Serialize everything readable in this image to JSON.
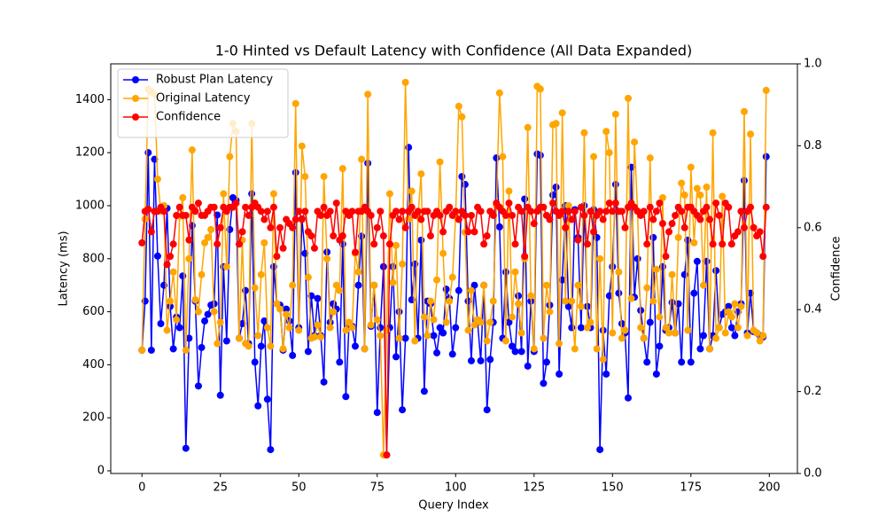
{
  "chart_data": {
    "type": "line",
    "title": "1-0 Hinted vs Default Latency with Confidence (All Data Expanded)",
    "xlabel": "Query Index",
    "ylabel": "Latency (ms)",
    "y2label": "Confidence",
    "x": [
      0,
      1,
      2,
      3,
      4,
      5,
      6,
      7,
      8,
      9,
      10,
      11,
      12,
      13,
      14,
      15,
      16,
      17,
      18,
      19,
      20,
      21,
      22,
      23,
      24,
      25,
      26,
      27,
      28,
      29,
      30,
      31,
      32,
      33,
      34,
      35,
      36,
      37,
      38,
      39,
      40,
      41,
      42,
      43,
      44,
      45,
      46,
      47,
      48,
      49,
      50,
      51,
      52,
      53,
      54,
      55,
      56,
      57,
      58,
      59,
      60,
      61,
      62,
      63,
      64,
      65,
      66,
      67,
      68,
      69,
      70,
      71,
      72,
      73,
      74,
      75,
      76,
      77,
      78,
      79,
      80,
      81,
      82,
      83,
      84,
      85,
      86,
      87,
      88,
      89,
      90,
      91,
      92,
      93,
      94,
      95,
      96,
      97,
      98,
      99,
      100,
      101,
      102,
      103,
      104,
      105,
      106,
      107,
      108,
      109,
      110,
      111,
      112,
      113,
      114,
      115,
      116,
      117,
      118,
      119,
      120,
      121,
      122,
      123,
      124,
      125,
      126,
      127,
      128,
      129,
      130,
      131,
      132,
      133,
      134,
      135,
      136,
      137,
      138,
      139,
      140,
      141,
      142,
      143,
      144,
      145,
      146,
      147,
      148,
      149,
      150,
      151,
      152,
      153,
      154,
      155,
      156,
      157,
      158,
      159,
      160,
      161,
      162,
      163,
      164,
      165,
      166,
      167,
      168,
      169,
      170,
      171,
      172,
      173,
      174,
      175,
      176,
      177,
      178,
      179,
      180,
      181,
      182,
      183,
      184,
      185,
      186,
      187,
      188,
      189,
      190,
      191,
      192,
      193,
      194,
      195,
      196,
      197,
      198,
      199
    ],
    "series": [
      {
        "name": "Robust Plan Latency",
        "color": "#0000ff",
        "values": [
          455,
          640,
          1200,
          455,
          1175,
          810,
          555,
          700,
          990,
          620,
          460,
          580,
          540,
          735,
          85,
          500,
          925,
          640,
          320,
          465,
          565,
          590,
          625,
          630,
          965,
          285,
          770,
          490,
          910,
          1030,
          1020,
          500,
          555,
          680,
          480,
          1045,
          410,
          245,
          470,
          565,
          270,
          80,
          770,
          630,
          625,
          455,
          610,
          565,
          435,
          1125,
          540,
          950,
          820,
          450,
          660,
          510,
          650,
          510,
          335,
          825,
          560,
          630,
          610,
          410,
          855,
          280,
          550,
          545,
          470,
          700,
          885,
          460,
          1160,
          545,
          700,
          220,
          540,
          770,
          60,
          540,
          770,
          430,
          600,
          230,
          500,
          1220,
          645,
          780,
          500,
          870,
          300,
          640,
          630,
          510,
          445,
          540,
          520,
          685,
          650,
          440,
          540,
          680,
          1110,
          1080,
          640,
          415,
          700,
          560,
          415,
          700,
          230,
          420,
          560,
          1180,
          920,
          500,
          750,
          560,
          470,
          450,
          660,
          450,
          1025,
          395,
          640,
          450,
          1195,
          1190,
          330,
          410,
          625,
          1040,
          1070,
          365,
          720,
          1000,
          620,
          540,
          985,
          880,
          540,
          1000,
          620,
          540,
          985,
          880,
          80,
          530,
          365,
          660,
          770,
          1080,
          670,
          555,
          520,
          275,
          1145,
          655,
          800,
          605,
          500,
          410,
          560,
          880,
          365,
          470,
          770,
          530,
          540,
          635,
          520,
          630,
          410,
          740,
          870,
          410,
          670,
          790,
          460,
          510,
          790,
          460,
          510,
          755,
          540,
          590,
          600,
          620,
          540,
          510,
          600,
          630,
          1095,
          520,
          670,
          525,
          520,
          510,
          505,
          1185
        ]
      },
      {
        "name": "Original Latency",
        "color": "#ffa500",
        "values": [
          455,
          950,
          1440,
          1430,
          1420,
          1100,
          980,
          1000,
          530,
          640,
          750,
          570,
          960,
          1030,
          455,
          800,
          1210,
          645,
          600,
          740,
          860,
          880,
          910,
          600,
          480,
          560,
          1045,
          770,
          1185,
          1310,
          1280,
          500,
          870,
          480,
          470,
          1310,
          690,
          510,
          740,
          860,
          540,
          470,
          1045,
          630,
          610,
          460,
          590,
          540,
          700,
          1385,
          530,
          1225,
          1110,
          730,
          500,
          505,
          550,
          505,
          1110,
          800,
          540,
          600,
          700,
          680,
          1140,
          530,
          560,
          540,
          820,
          750,
          1175,
          460,
          1420,
          550,
          700,
          570,
          510,
          60,
          530,
          1045,
          710,
          850,
          500,
          780,
          1465,
          950,
          1055,
          490,
          960,
          1120,
          580,
          510,
          640,
          570,
          720,
          1165,
          820,
          560,
          640,
          730,
          960,
          1375,
          1335,
          900,
          530,
          680,
          550,
          570,
          560,
          700,
          490,
          560,
          640,
          1000,
          1425,
          1185,
          490,
          1055,
          580,
          750,
          630,
          520,
          800,
          1295,
          660,
          460,
          1450,
          1440,
          500,
          700,
          600,
          1305,
          1310,
          480,
          1350,
          640,
          1000,
          640,
          460,
          700,
          620,
          1275,
          540,
          560,
          1185,
          460,
          800,
          420,
          1280,
          1200,
          520,
          1345,
          750,
          500,
          530,
          1405,
          650,
          1240,
          980,
          540,
          500,
          690,
          1180,
          640,
          760,
          580,
          1030,
          540,
          520,
          740,
          520,
          880,
          1085,
          1040,
          530,
          1145,
          860,
          1065,
          1040,
          700,
          1070,
          460,
          1275,
          500,
          540,
          1035,
          520,
          600,
          580,
          630,
          540,
          620,
          1355,
          510,
          1270,
          530,
          520,
          490,
          510,
          1435
        ]
      },
      {
        "name": "Confidence",
        "color": "#ff0000",
        "axis": "y2",
        "values": [
          0.563,
          0.64,
          0.645,
          0.59,
          0.64,
          0.64,
          0.65,
          0.64,
          0.51,
          0.53,
          0.56,
          0.63,
          0.65,
          0.63,
          0.63,
          0.57,
          0.65,
          0.64,
          0.66,
          0.63,
          0.63,
          0.64,
          0.65,
          0.65,
          0.56,
          0.6,
          0.65,
          0.64,
          0.65,
          0.65,
          0.66,
          0.56,
          0.59,
          0.65,
          0.63,
          0.65,
          0.66,
          0.65,
          0.64,
          0.62,
          0.64,
          0.6,
          0.65,
          0.53,
          0.6,
          0.55,
          0.62,
          0.61,
          0.6,
          0.62,
          0.64,
          0.62,
          0.64,
          0.59,
          0.58,
          0.55,
          0.64,
          0.63,
          0.65,
          0.63,
          0.64,
          0.58,
          0.66,
          0.57,
          0.58,
          0.64,
          0.63,
          0.64,
          0.54,
          0.64,
          0.64,
          0.65,
          0.64,
          0.63,
          0.56,
          0.6,
          0.64,
          0.58,
          0.045,
          0.56,
          0.63,
          0.64,
          0.62,
          0.64,
          0.6,
          0.64,
          0.65,
          0.63,
          0.64,
          0.62,
          0.64,
          0.64,
          0.58,
          0.63,
          0.64,
          0.63,
          0.59,
          0.64,
          0.65,
          0.63,
          0.64,
          0.62,
          0.64,
          0.63,
          0.59,
          0.63,
          0.59,
          0.65,
          0.64,
          0.56,
          0.58,
          0.64,
          0.63,
          0.66,
          0.65,
          0.64,
          0.63,
          0.66,
          0.63,
          0.56,
          0.65,
          0.64,
          0.53,
          0.65,
          0.64,
          0.61,
          0.64,
          0.65,
          0.65,
          0.63,
          0.62,
          0.66,
          0.64,
          0.63,
          0.64,
          0.6,
          0.64,
          0.62,
          0.64,
          0.57,
          0.65,
          0.63,
          0.56,
          0.64,
          0.59,
          0.63,
          0.64,
          0.62,
          0.64,
          0.66,
          0.64,
          0.66,
          0.64,
          0.64,
          0.6,
          0.65,
          0.66,
          0.65,
          0.64,
          0.63,
          0.64,
          0.56,
          0.65,
          0.62,
          0.64,
          0.66,
          0.61,
          0.53,
          0.59,
          0.61,
          0.63,
          0.65,
          0.64,
          0.6,
          0.65,
          0.65,
          0.64,
          0.63,
          0.62,
          0.64,
          0.65,
          0.62,
          0.56,
          0.66,
          0.63,
          0.56,
          0.66,
          0.65,
          0.56,
          0.58,
          0.59,
          0.64,
          0.6,
          0.64,
          0.65,
          0.6,
          0.58,
          0.59,
          0.53,
          0.65
        ]
      }
    ],
    "xlim": [
      -9.95,
      208.95
    ],
    "xticks": [
      0,
      25,
      50,
      75,
      100,
      125,
      150,
      175,
      200
    ],
    "ylim": [
      -10,
      1535
    ],
    "yticks": [
      0,
      200,
      400,
      600,
      800,
      1000,
      1200,
      1400
    ],
    "y2lim": [
      0,
      1
    ],
    "y2ticks": [
      {
        "value": 0,
        "label": "0.0"
      },
      {
        "value": 0.2,
        "label": "0.2"
      },
      {
        "value": 0.4,
        "label": "0.4"
      },
      {
        "value": 0.6,
        "label": "0.6"
      },
      {
        "value": 0.8,
        "label": "0.8"
      },
      {
        "value": 1,
        "label": "1.0"
      }
    ],
    "legend": "upper left",
    "grid": false
  }
}
